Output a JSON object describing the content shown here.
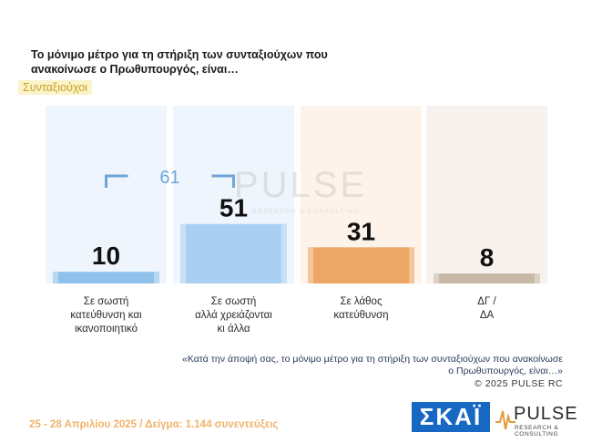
{
  "title": "Το μόνιμο μέτρο  για τη στήριξη των συνταξιούχων που ανακοίνωσε ο Πρωθυπουργός, είναι…",
  "subgroup": "Συνταξιούχοι",
  "chart_data": {
    "type": "bar",
    "title": "Το μόνιμο μέτρο  για τη στήριξη των συνταξιούχων που ανακοίνωσε ο Πρωθυπουργός, είναι…",
    "categories": [
      "Σε σωστή κατεύθυνση και ικανοποιητικό",
      "Σε σωστή αλλά χρειάζονται κι άλλα",
      "Σε λάθος κατεύθυνση",
      "ΔΓ / ΔΑ"
    ],
    "category_lines": [
      [
        "Σε σωστή",
        "κατεύθυνση και",
        "ικανοποιητικό"
      ],
      [
        "Σε σωστή",
        "αλλά χρειάζονται",
        "κι άλλα"
      ],
      [
        "Σε λάθος",
        "κατεύθυνση"
      ],
      [
        "ΔΓ /",
        "ΔΑ"
      ]
    ],
    "values": [
      10,
      51,
      31,
      8
    ],
    "bar_colors": [
      "#8ec2ec",
      "#a9d0f2",
      "#eca766",
      "#c8b9a6"
    ],
    "column_colors": [
      "#eef5fd",
      "#eef5fd",
      "#fdf3ea",
      "#f7f2ee"
    ],
    "bracket": {
      "value": 61,
      "spans_categories": [
        0,
        1
      ],
      "color": "#6fa6d6"
    },
    "ylim": [
      0,
      100
    ]
  },
  "watermark": {
    "name": "PULSE",
    "tagline": "RESEARCH & CONSULTING"
  },
  "question": "«Κατά την άποψή σας, το μόνιμο μέτρο  για τη στήριξη των συνταξιούχων που ανακοίνωσε ο Πρωθυπουργός, είναι…»",
  "copyright": "©  2025  PULSE RC",
  "footer": "25 - 28 Απριλίου 2025  /  Δείγμα:  1.144 συνεντεύξεις",
  "logos": {
    "skai": "ΣΚΑΪ",
    "pulse_name": "PULSE",
    "pulse_tagline": "RESEARCH & CONSULTING"
  }
}
